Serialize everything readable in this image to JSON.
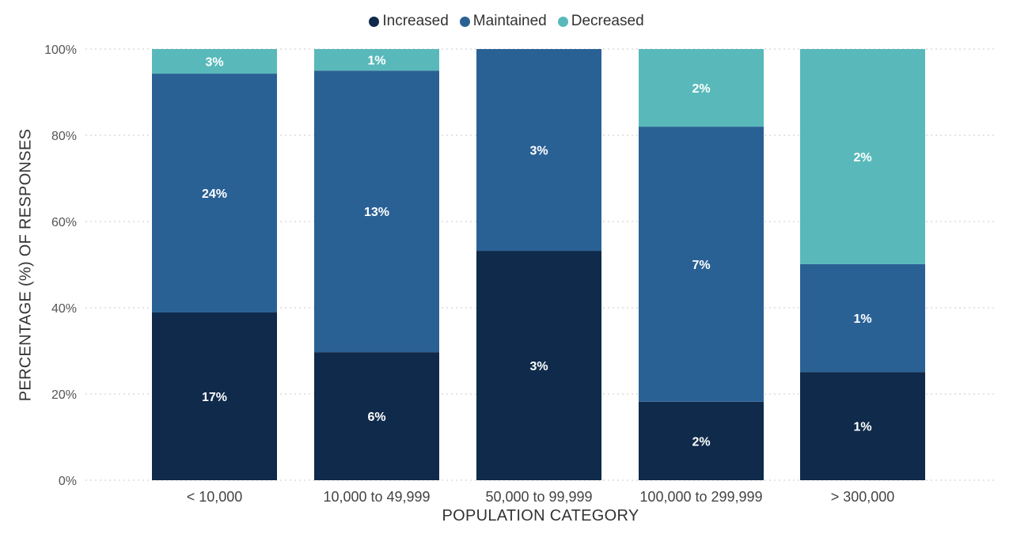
{
  "chart_data": {
    "type": "bar",
    "stacked": true,
    "percent_stacked": true,
    "title": "",
    "xlabel": "POPULATION CATEGORY",
    "ylabel": "PERCENTAGE (%) OF RESPONSES",
    "ylim": [
      0,
      100
    ],
    "yticks": [
      "0%",
      "20%",
      "40%",
      "60%",
      "80%",
      "100%"
    ],
    "ytick_values": [
      0,
      20,
      40,
      60,
      80,
      100
    ],
    "grid": "horizontal dotted",
    "legend_position": "top-center",
    "categories": [
      "< 10,000",
      "10,000 to 49,999",
      "50,000 to 99,999",
      "100,000 to 299,999",
      "> 300,000"
    ],
    "series": [
      {
        "name": "Increased",
        "color": "#0f2a4a",
        "share_percent": [
          38.9,
          29.7,
          53.2,
          18.2,
          25.1
        ],
        "labels": [
          "17%",
          "6%",
          "3%",
          "2%",
          "1%"
        ]
      },
      {
        "name": "Maintained",
        "color": "#2a6195",
        "share_percent": [
          55.4,
          65.3,
          46.8,
          63.8,
          25.0
        ],
        "labels": [
          "24%",
          "13%",
          "3%",
          "7%",
          "1%"
        ]
      },
      {
        "name": "Decreased",
        "color": "#59b9ba",
        "share_percent": [
          5.7,
          5.0,
          0.0,
          18.0,
          49.9
        ],
        "labels": [
          "3%",
          "1%",
          "",
          "2%",
          "2%"
        ]
      }
    ]
  }
}
